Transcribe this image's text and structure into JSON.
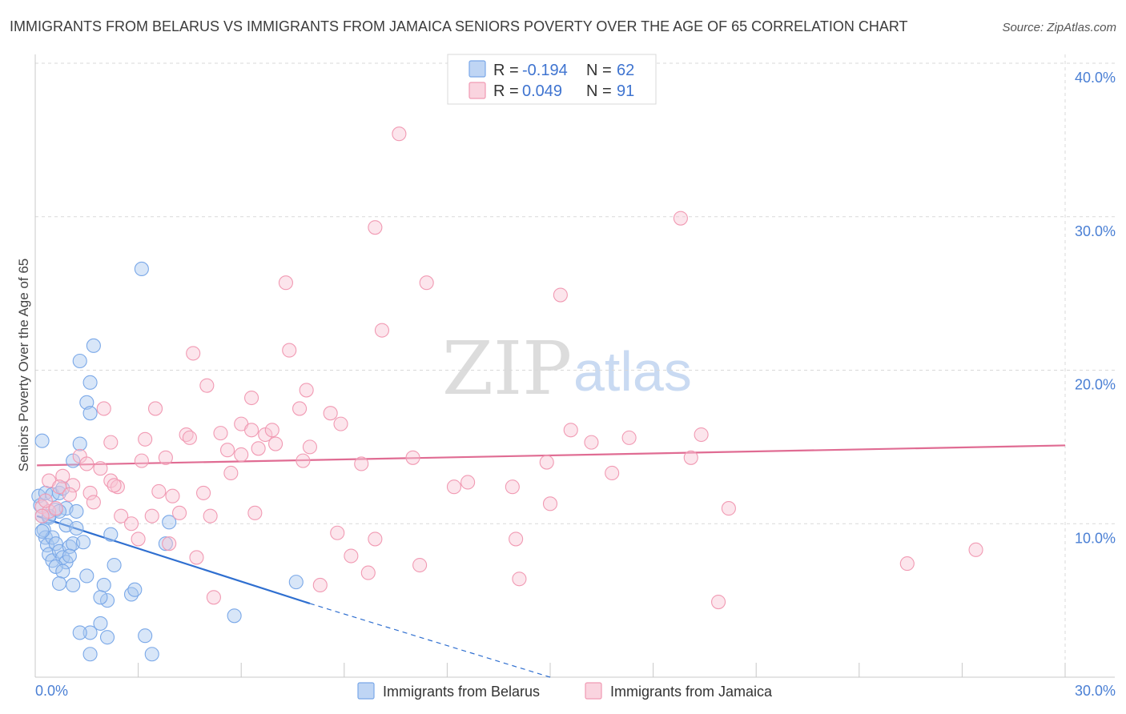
{
  "chart_data": {
    "type": "scatter",
    "title": "IMMIGRANTS FROM BELARUS VS IMMIGRANTS FROM JAMAICA SENIORS POVERTY OVER THE AGE OF 65 CORRELATION CHART",
    "source": "Source: ZipAtlas.com",
    "ylabel": "Seniors Poverty Over the Age of 65",
    "xlabel": "",
    "xlim": [
      0,
      30
    ],
    "ylim": [
      0,
      40
    ],
    "x_ticks": [
      "0.0%",
      "30.0%"
    ],
    "y_ticks": [
      {
        "value": 10,
        "label": "10.0%"
      },
      {
        "value": 20,
        "label": "20.0%"
      },
      {
        "value": 30,
        "label": "30.0%"
      },
      {
        "value": 40,
        "label": "40.0%"
      }
    ],
    "grid": true,
    "legend_position": "top-center",
    "watermark": {
      "zip": "ZIP",
      "atlas": "atlas"
    },
    "series": [
      {
        "name": "Immigrants from Belarus",
        "color": "#7aa8e8",
        "fill": "#a9c7f0",
        "r_label": "R =",
        "r_value": "-0.194",
        "n_label": "N =",
        "n_value": "62",
        "trend": {
          "x0": 0.05,
          "y0": 10.5,
          "x1": 8.0,
          "y1": 4.8,
          "dash_x1": 15.0,
          "dash_y1": 0.0,
          "color": "#2f6fd0"
        },
        "points": [
          [
            0.2,
            15.4
          ],
          [
            0.1,
            11.8
          ],
          [
            0.15,
            11.2
          ],
          [
            0.2,
            10.5
          ],
          [
            0.25,
            9.6
          ],
          [
            0.3,
            9.1
          ],
          [
            0.35,
            8.6
          ],
          [
            0.4,
            8.0
          ],
          [
            0.5,
            7.6
          ],
          [
            0.3,
            12.0
          ],
          [
            0.4,
            10.4
          ],
          [
            0.5,
            11.9
          ],
          [
            0.6,
            10.9
          ],
          [
            0.7,
            12.0
          ],
          [
            0.8,
            12.3
          ],
          [
            0.9,
            11.0
          ],
          [
            0.7,
            10.8
          ],
          [
            0.5,
            9.1
          ],
          [
            0.6,
            8.7
          ],
          [
            0.7,
            8.2
          ],
          [
            0.8,
            7.8
          ],
          [
            0.9,
            7.5
          ],
          [
            1.0,
            8.5
          ],
          [
            1.1,
            8.7
          ],
          [
            0.6,
            7.2
          ],
          [
            0.8,
            6.9
          ],
          [
            0.9,
            9.9
          ],
          [
            1.2,
            9.7
          ],
          [
            1.4,
            8.8
          ],
          [
            1.2,
            10.8
          ],
          [
            1.1,
            14.1
          ],
          [
            1.3,
            15.2
          ],
          [
            1.5,
            17.9
          ],
          [
            1.6,
            17.2
          ],
          [
            1.3,
            20.6
          ],
          [
            1.6,
            19.2
          ],
          [
            1.7,
            21.6
          ],
          [
            2.2,
            9.3
          ],
          [
            2.3,
            7.3
          ],
          [
            2.0,
            6.0
          ],
          [
            2.1,
            5.0
          ],
          [
            1.9,
            5.2
          ],
          [
            2.8,
            5.4
          ],
          [
            2.9,
            5.7
          ],
          [
            3.8,
            8.7
          ],
          [
            3.9,
            10.1
          ],
          [
            1.5,
            6.6
          ],
          [
            0.7,
            6.1
          ],
          [
            1.1,
            6.0
          ],
          [
            1.0,
            7.9
          ],
          [
            1.9,
            3.5
          ],
          [
            2.1,
            2.6
          ],
          [
            1.6,
            2.9
          ],
          [
            1.3,
            2.9
          ],
          [
            1.6,
            1.5
          ],
          [
            3.2,
            2.7
          ],
          [
            3.4,
            1.5
          ],
          [
            5.8,
            4.0
          ],
          [
            7.6,
            6.2
          ],
          [
            3.1,
            26.6
          ],
          [
            0.2,
            9.5
          ],
          [
            0.4,
            10.5
          ]
        ]
      },
      {
        "name": "Immigrants from Jamaica",
        "color": "#f19ab3",
        "fill": "#f8c6d4",
        "r_label": "R =",
        "r_value": "0.049",
        "n_label": "N =",
        "n_value": "91",
        "trend": {
          "x0": 0.05,
          "y0": 13.8,
          "x1": 30.0,
          "y1": 15.1,
          "color": "#e06c93"
        },
        "points": [
          [
            10.6,
            35.4
          ],
          [
            9.9,
            29.3
          ],
          [
            18.8,
            29.9
          ],
          [
            7.3,
            25.7
          ],
          [
            11.4,
            25.7
          ],
          [
            15.3,
            24.9
          ],
          [
            10.1,
            22.6
          ],
          [
            4.6,
            21.1
          ],
          [
            7.4,
            21.3
          ],
          [
            5.0,
            19.0
          ],
          [
            7.9,
            18.7
          ],
          [
            6.3,
            18.2
          ],
          [
            2.0,
            17.5
          ],
          [
            3.5,
            17.5
          ],
          [
            7.7,
            17.5
          ],
          [
            8.6,
            17.2
          ],
          [
            8.9,
            16.5
          ],
          [
            6.0,
            16.5
          ],
          [
            6.3,
            16.1
          ],
          [
            5.4,
            15.9
          ],
          [
            4.4,
            15.8
          ],
          [
            4.5,
            15.6
          ],
          [
            3.2,
            15.5
          ],
          [
            2.2,
            15.3
          ],
          [
            6.7,
            15.8
          ],
          [
            6.9,
            16.1
          ],
          [
            7.0,
            15.2
          ],
          [
            8.0,
            15.0
          ],
          [
            6.5,
            14.9
          ],
          [
            5.6,
            14.8
          ],
          [
            6.0,
            14.5
          ],
          [
            15.6,
            16.1
          ],
          [
            16.2,
            15.3
          ],
          [
            17.3,
            15.6
          ],
          [
            19.4,
            15.8
          ],
          [
            1.9,
            13.6
          ],
          [
            2.2,
            12.8
          ],
          [
            2.4,
            12.4
          ],
          [
            3.1,
            14.1
          ],
          [
            3.8,
            14.3
          ],
          [
            7.8,
            14.1
          ],
          [
            9.5,
            13.9
          ],
          [
            11.0,
            14.3
          ],
          [
            14.9,
            14.0
          ],
          [
            16.8,
            13.3
          ],
          [
            19.1,
            14.3
          ],
          [
            5.7,
            13.3
          ],
          [
            1.3,
            14.4
          ],
          [
            1.5,
            13.9
          ],
          [
            0.8,
            13.1
          ],
          [
            0.4,
            12.8
          ],
          [
            0.7,
            12.4
          ],
          [
            1.1,
            12.5
          ],
          [
            1.6,
            12.0
          ],
          [
            2.3,
            12.5
          ],
          [
            3.6,
            12.1
          ],
          [
            4.0,
            11.8
          ],
          [
            4.9,
            12.0
          ],
          [
            12.2,
            12.4
          ],
          [
            12.6,
            12.7
          ],
          [
            13.9,
            12.4
          ],
          [
            1.7,
            11.4
          ],
          [
            0.2,
            11.1
          ],
          [
            0.4,
            10.8
          ],
          [
            0.2,
            10.5
          ],
          [
            2.5,
            10.5
          ],
          [
            2.8,
            10.0
          ],
          [
            3.4,
            10.5
          ],
          [
            4.2,
            10.7
          ],
          [
            5.1,
            10.5
          ],
          [
            6.4,
            10.7
          ],
          [
            15.0,
            11.3
          ],
          [
            20.2,
            11.0
          ],
          [
            3.0,
            9.0
          ],
          [
            3.9,
            8.7
          ],
          [
            8.8,
            9.4
          ],
          [
            9.9,
            9.0
          ],
          [
            14.0,
            9.0
          ],
          [
            4.7,
            7.8
          ],
          [
            9.2,
            7.9
          ],
          [
            11.2,
            7.3
          ],
          [
            9.7,
            6.8
          ],
          [
            8.3,
            6.0
          ],
          [
            14.1,
            6.4
          ],
          [
            5.2,
            5.2
          ],
          [
            19.9,
            4.9
          ],
          [
            25.4,
            7.4
          ],
          [
            27.4,
            8.3
          ],
          [
            0.3,
            11.5
          ],
          [
            0.6,
            11.0
          ],
          [
            1.0,
            11.9
          ]
        ]
      }
    ]
  }
}
